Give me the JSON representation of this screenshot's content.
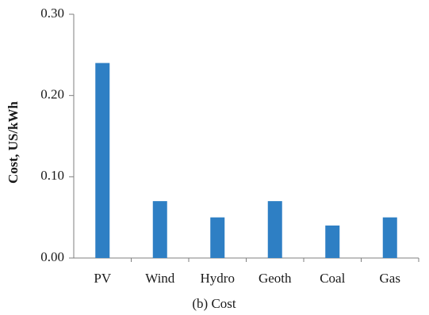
{
  "chart_data": {
    "type": "bar",
    "categories": [
      "PV",
      "Wind",
      "Hydro",
      "Geoth",
      "Coal",
      "Gas"
    ],
    "values": [
      0.24,
      0.07,
      0.05,
      0.07,
      0.04,
      0.05
    ],
    "xlabel": "",
    "ylabel": "Cost, US/kWh",
    "ylim": [
      0,
      0.3
    ],
    "yticks": [
      "0.00",
      "0.10",
      "0.20",
      "0.30"
    ],
    "grid": false,
    "bar_color": "#2e7fc4",
    "axis_color": "#7f7f7f"
  },
  "caption": "(b) Cost"
}
